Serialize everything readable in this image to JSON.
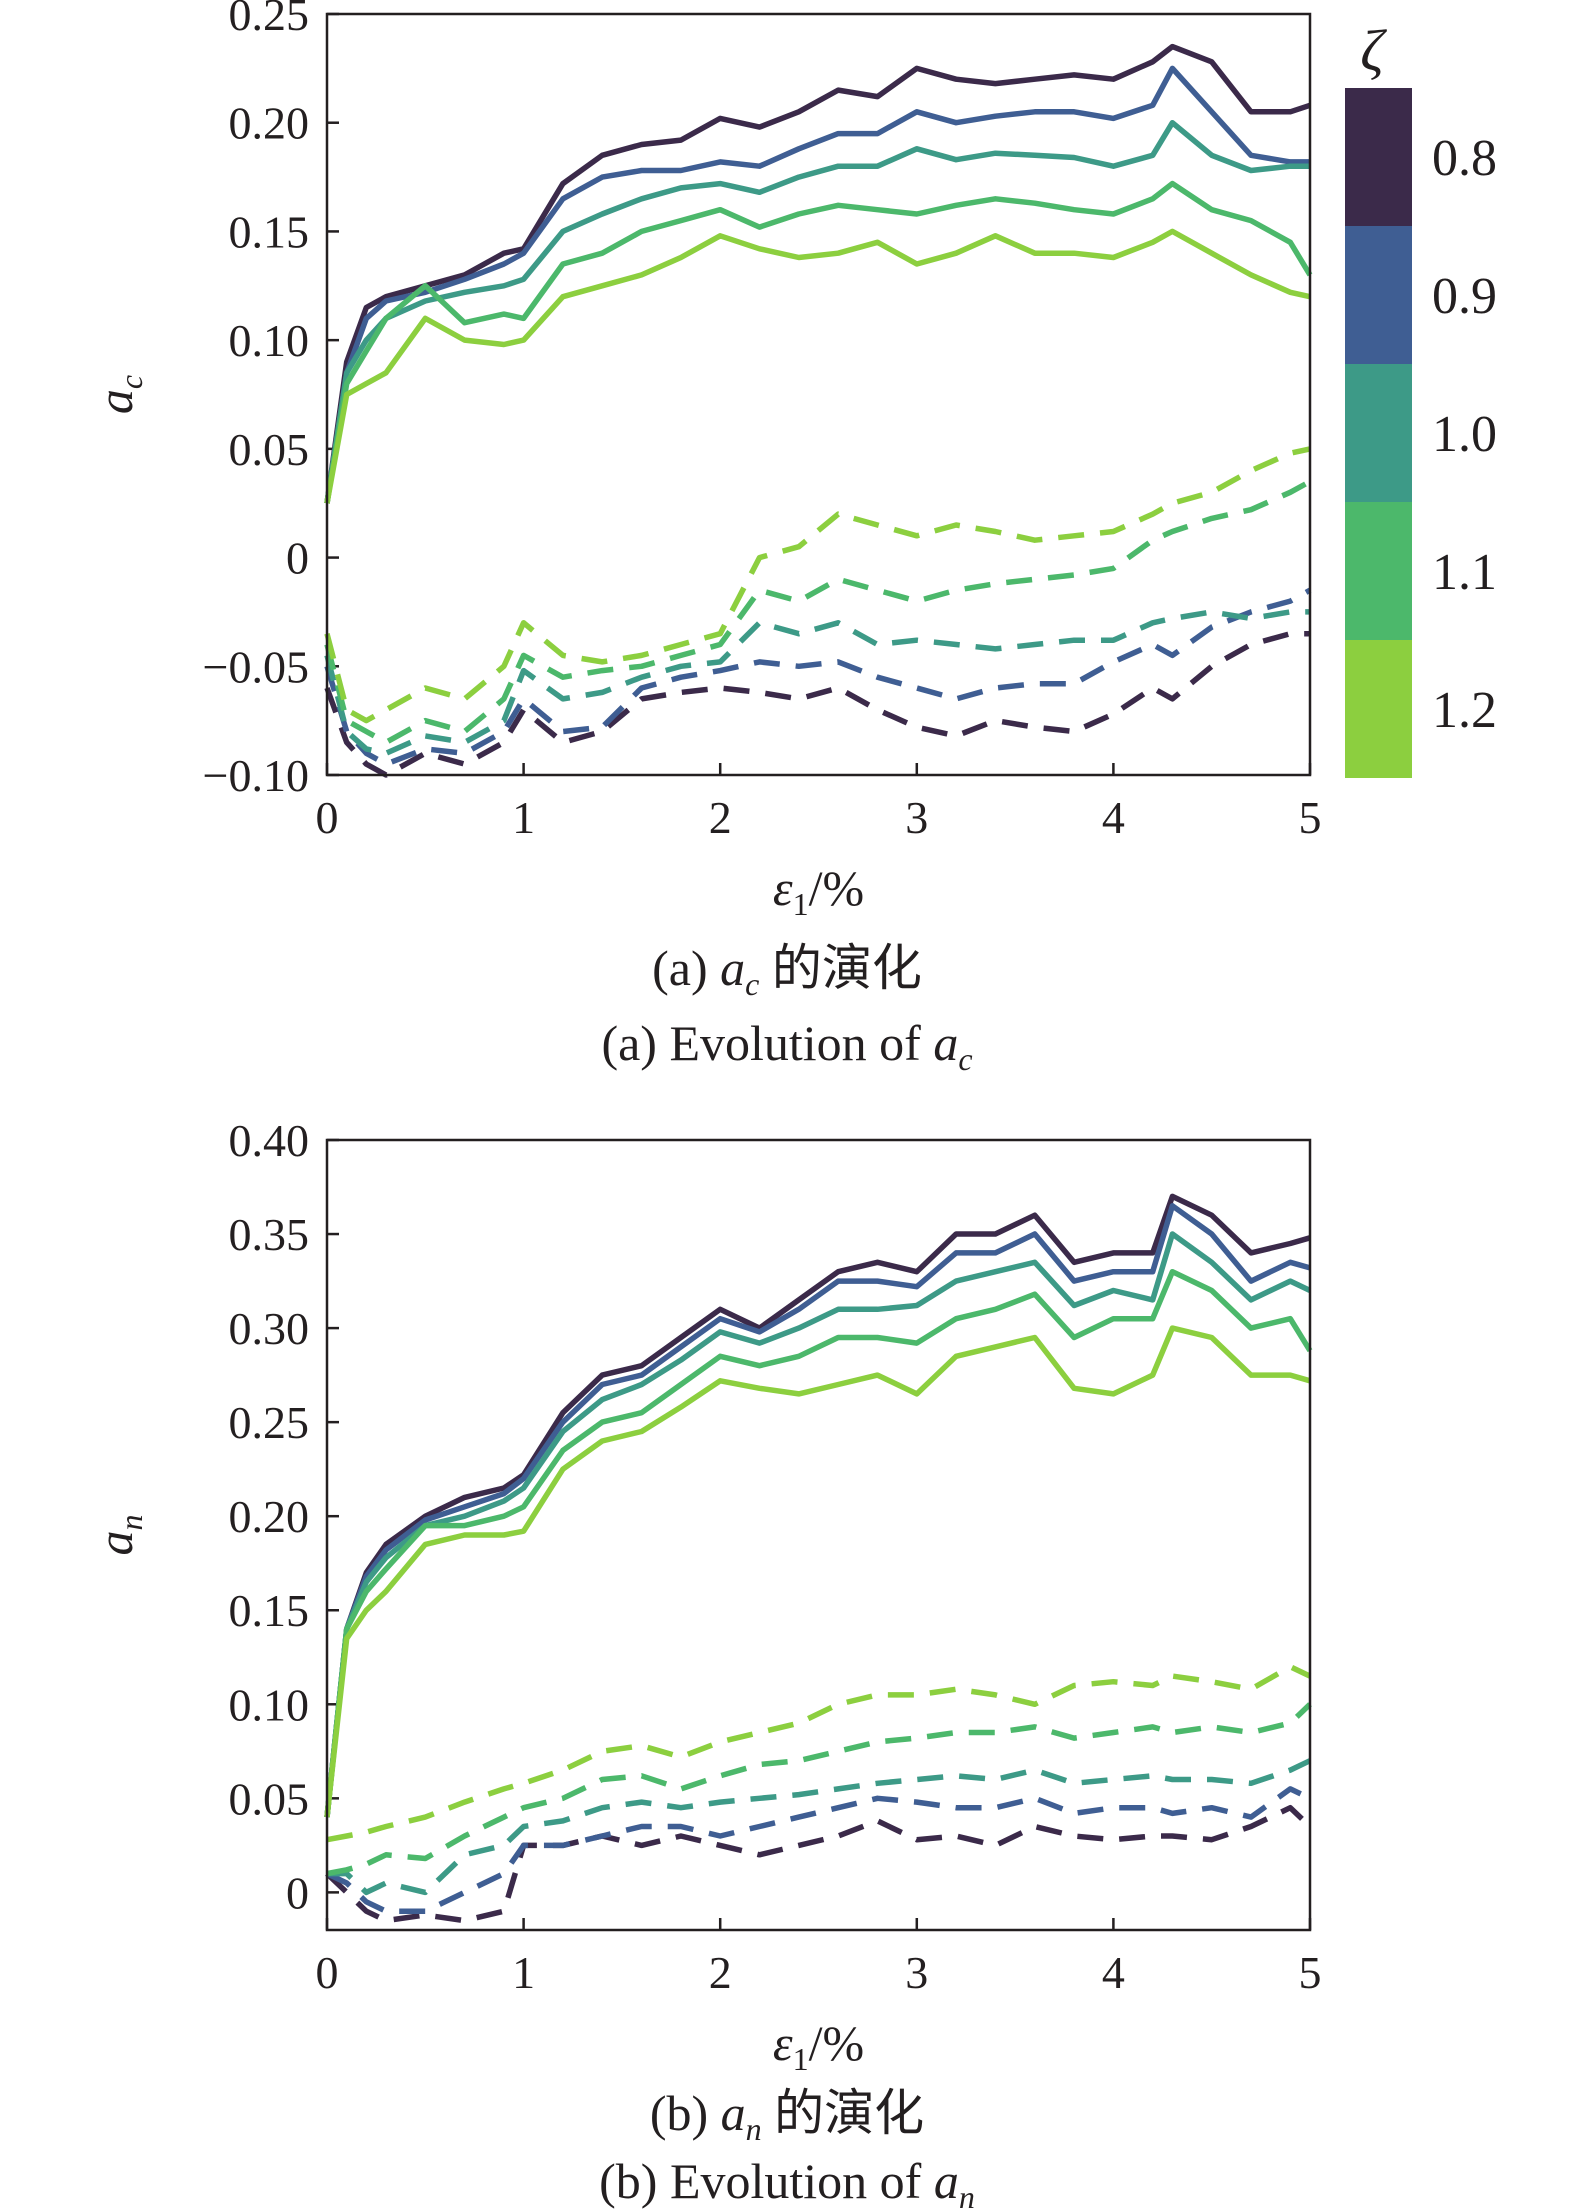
{
  "colorbar": {
    "title": "ζ",
    "levels": [
      {
        "label": "0.8",
        "color": "#3b2a4a"
      },
      {
        "label": "0.9",
        "color": "#3f5e93"
      },
      {
        "label": "1.0",
        "color": "#3d9a87"
      },
      {
        "label": "1.1",
        "color": "#4cb86b"
      },
      {
        "label": "1.2",
        "color": "#8ccf3f"
      }
    ]
  },
  "chart_data": [
    {
      "type": "line",
      "panel": "a",
      "xlabel": "ε1/%",
      "ylabel": "ac",
      "xlim": [
        0,
        5
      ],
      "ylim": [
        -0.1,
        0.25
      ],
      "xticks": [
        "0",
        "1",
        "2",
        "3",
        "4",
        "5"
      ],
      "yticks": [
        "−0.10",
        "−0.05",
        "0",
        "0.05",
        "0.10",
        "0.15",
        "0.20",
        "0.25"
      ],
      "caption_cn": "(a) ac 的演化",
      "caption_en": "(a) Evolution of ac",
      "x": [
        0,
        0.1,
        0.2,
        0.3,
        0.5,
        0.7,
        0.9,
        1.0,
        1.2,
        1.4,
        1.6,
        1.8,
        2.0,
        2.2,
        2.4,
        2.6,
        2.8,
        3.0,
        3.2,
        3.4,
        3.6,
        3.8,
        4.0,
        4.2,
        4.3,
        4.5,
        4.7,
        4.9,
        5.0
      ],
      "series": [
        {
          "zeta": "0.8",
          "style": "solid",
          "values": [
            0.025,
            0.09,
            0.115,
            0.12,
            0.125,
            0.13,
            0.14,
            0.142,
            0.172,
            0.185,
            0.19,
            0.192,
            0.202,
            0.198,
            0.205,
            0.215,
            0.212,
            0.225,
            0.22,
            0.218,
            0.22,
            0.222,
            0.22,
            0.228,
            0.235,
            0.228,
            0.205,
            0.205,
            0.208
          ]
        },
        {
          "zeta": "0.9",
          "style": "solid",
          "values": [
            0.025,
            0.085,
            0.11,
            0.118,
            0.122,
            0.128,
            0.135,
            0.14,
            0.165,
            0.175,
            0.178,
            0.178,
            0.182,
            0.18,
            0.188,
            0.195,
            0.195,
            0.205,
            0.2,
            0.203,
            0.205,
            0.205,
            0.202,
            0.208,
            0.225,
            0.205,
            0.185,
            0.182,
            0.182
          ]
        },
        {
          "zeta": "1.0",
          "style": "solid",
          "values": [
            0.025,
            0.085,
            0.1,
            0.11,
            0.118,
            0.122,
            0.125,
            0.128,
            0.15,
            0.158,
            0.165,
            0.17,
            0.172,
            0.168,
            0.175,
            0.18,
            0.18,
            0.188,
            0.183,
            0.186,
            0.185,
            0.184,
            0.18,
            0.185,
            0.2,
            0.185,
            0.178,
            0.18,
            0.18
          ]
        },
        {
          "zeta": "1.1",
          "style": "solid",
          "values": [
            0.025,
            0.08,
            0.095,
            0.11,
            0.125,
            0.108,
            0.112,
            0.11,
            0.135,
            0.14,
            0.15,
            0.155,
            0.16,
            0.152,
            0.158,
            0.162,
            0.16,
            0.158,
            0.162,
            0.165,
            0.163,
            0.16,
            0.158,
            0.165,
            0.172,
            0.16,
            0.155,
            0.145,
            0.13
          ]
        },
        {
          "zeta": "1.2",
          "style": "solid",
          "values": [
            0.025,
            0.075,
            0.08,
            0.085,
            0.11,
            0.1,
            0.098,
            0.1,
            0.12,
            0.125,
            0.13,
            0.138,
            0.148,
            0.142,
            0.138,
            0.14,
            0.145,
            0.135,
            0.14,
            0.148,
            0.14,
            0.14,
            0.138,
            0.145,
            0.15,
            0.14,
            0.13,
            0.122,
            0.12
          ]
        },
        {
          "zeta": "0.8",
          "style": "dashed",
          "values": [
            -0.06,
            -0.085,
            -0.095,
            -0.1,
            -0.09,
            -0.095,
            -0.085,
            -0.07,
            -0.085,
            -0.08,
            -0.065,
            -0.062,
            -0.06,
            -0.062,
            -0.065,
            -0.06,
            -0.07,
            -0.078,
            -0.082,
            -0.075,
            -0.078,
            -0.08,
            -0.072,
            -0.06,
            -0.065,
            -0.05,
            -0.04,
            -0.035,
            -0.035
          ]
        },
        {
          "zeta": "0.9",
          "style": "dashed",
          "values": [
            -0.05,
            -0.08,
            -0.09,
            -0.095,
            -0.088,
            -0.09,
            -0.08,
            -0.065,
            -0.08,
            -0.078,
            -0.06,
            -0.055,
            -0.052,
            -0.048,
            -0.05,
            -0.048,
            -0.055,
            -0.06,
            -0.065,
            -0.06,
            -0.058,
            -0.058,
            -0.048,
            -0.04,
            -0.045,
            -0.032,
            -0.025,
            -0.02,
            -0.015
          ]
        },
        {
          "zeta": "1.0",
          "style": "dashed",
          "values": [
            -0.045,
            -0.08,
            -0.088,
            -0.09,
            -0.082,
            -0.085,
            -0.075,
            -0.052,
            -0.065,
            -0.062,
            -0.055,
            -0.05,
            -0.048,
            -0.03,
            -0.035,
            -0.03,
            -0.04,
            -0.038,
            -0.04,
            -0.042,
            -0.04,
            -0.038,
            -0.038,
            -0.03,
            -0.028,
            -0.025,
            -0.028,
            -0.025,
            -0.025
          ]
        },
        {
          "zeta": "1.1",
          "style": "dashed",
          "values": [
            -0.04,
            -0.075,
            -0.08,
            -0.085,
            -0.075,
            -0.08,
            -0.065,
            -0.045,
            -0.055,
            -0.052,
            -0.05,
            -0.045,
            -0.04,
            -0.015,
            -0.02,
            -0.01,
            -0.015,
            -0.02,
            -0.015,
            -0.012,
            -0.01,
            -0.008,
            -0.005,
            0.008,
            0.012,
            0.018,
            0.022,
            0.03,
            0.035
          ]
        },
        {
          "zeta": "1.2",
          "style": "dashed",
          "values": [
            -0.035,
            -0.07,
            -0.075,
            -0.07,
            -0.06,
            -0.065,
            -0.05,
            -0.03,
            -0.045,
            -0.048,
            -0.045,
            -0.04,
            -0.035,
            0.0,
            0.005,
            0.02,
            0.015,
            0.01,
            0.015,
            0.012,
            0.008,
            0.01,
            0.012,
            0.02,
            0.025,
            0.03,
            0.04,
            0.048,
            0.05
          ]
        }
      ]
    },
    {
      "type": "line",
      "panel": "b",
      "xlabel": "ε1/%",
      "ylabel": "an",
      "xlim": [
        0,
        5
      ],
      "ylim": [
        -0.02,
        0.4
      ],
      "xticks": [
        "0",
        "1",
        "2",
        "3",
        "4",
        "5"
      ],
      "yticks": [
        "0",
        "0.05",
        "0.10",
        "0.15",
        "0.20",
        "0.25",
        "0.30",
        "0.35",
        "0.40"
      ],
      "caption_cn": "(b) an 的演化",
      "caption_en": "(b) Evolution of an",
      "x": [
        0,
        0.1,
        0.2,
        0.3,
        0.5,
        0.7,
        0.9,
        1.0,
        1.2,
        1.4,
        1.6,
        1.8,
        2.0,
        2.2,
        2.4,
        2.6,
        2.8,
        3.0,
        3.2,
        3.4,
        3.6,
        3.8,
        4.0,
        4.2,
        4.3,
        4.5,
        4.7,
        4.9,
        5.0
      ],
      "series": [
        {
          "zeta": "0.8",
          "style": "solid",
          "values": [
            0.04,
            0.14,
            0.17,
            0.185,
            0.2,
            0.21,
            0.215,
            0.222,
            0.255,
            0.275,
            0.28,
            0.295,
            0.31,
            0.3,
            0.315,
            0.33,
            0.335,
            0.33,
            0.35,
            0.35,
            0.36,
            0.335,
            0.34,
            0.34,
            0.37,
            0.36,
            0.34,
            0.345,
            0.348
          ]
        },
        {
          "zeta": "0.9",
          "style": "solid",
          "values": [
            0.04,
            0.14,
            0.168,
            0.182,
            0.198,
            0.205,
            0.212,
            0.22,
            0.25,
            0.27,
            0.275,
            0.29,
            0.305,
            0.298,
            0.31,
            0.325,
            0.325,
            0.322,
            0.34,
            0.34,
            0.35,
            0.325,
            0.33,
            0.33,
            0.365,
            0.35,
            0.325,
            0.335,
            0.332
          ]
        },
        {
          "zeta": "1.0",
          "style": "solid",
          "values": [
            0.04,
            0.14,
            0.165,
            0.178,
            0.195,
            0.2,
            0.208,
            0.215,
            0.245,
            0.262,
            0.27,
            0.283,
            0.298,
            0.292,
            0.3,
            0.31,
            0.31,
            0.312,
            0.325,
            0.33,
            0.335,
            0.312,
            0.32,
            0.315,
            0.35,
            0.335,
            0.315,
            0.325,
            0.32
          ]
        },
        {
          "zeta": "1.1",
          "style": "solid",
          "values": [
            0.04,
            0.14,
            0.16,
            0.172,
            0.195,
            0.195,
            0.2,
            0.205,
            0.235,
            0.25,
            0.255,
            0.27,
            0.285,
            0.28,
            0.285,
            0.295,
            0.295,
            0.292,
            0.305,
            0.31,
            0.318,
            0.295,
            0.305,
            0.305,
            0.33,
            0.32,
            0.3,
            0.305,
            0.288
          ]
        },
        {
          "zeta": "1.2",
          "style": "solid",
          "values": [
            0.04,
            0.135,
            0.15,
            0.16,
            0.185,
            0.19,
            0.19,
            0.192,
            0.225,
            0.24,
            0.245,
            0.258,
            0.272,
            0.268,
            0.265,
            0.27,
            0.275,
            0.265,
            0.285,
            0.29,
            0.295,
            0.268,
            0.265,
            0.275,
            0.3,
            0.295,
            0.275,
            0.275,
            0.272
          ]
        },
        {
          "zeta": "0.8",
          "style": "dashed",
          "values": [
            0.01,
            0.0,
            -0.01,
            -0.015,
            -0.012,
            -0.015,
            -0.01,
            0.025,
            0.025,
            0.03,
            0.025,
            0.03,
            0.025,
            0.02,
            0.025,
            0.03,
            0.038,
            0.028,
            0.03,
            0.025,
            0.035,
            0.03,
            0.028,
            0.03,
            0.03,
            0.028,
            0.035,
            0.045,
            0.035
          ]
        },
        {
          "zeta": "0.9",
          "style": "dashed",
          "values": [
            0.01,
            0.005,
            -0.005,
            -0.01,
            -0.01,
            0.0,
            0.01,
            0.025,
            0.025,
            0.03,
            0.035,
            0.035,
            0.03,
            0.035,
            0.04,
            0.045,
            0.05,
            0.048,
            0.045,
            0.045,
            0.05,
            0.042,
            0.045,
            0.045,
            0.042,
            0.045,
            0.04,
            0.055,
            0.05
          ]
        },
        {
          "zeta": "1.0",
          "style": "dashed",
          "values": [
            0.01,
            0.01,
            0.0,
            0.005,
            0.0,
            0.02,
            0.025,
            0.035,
            0.038,
            0.045,
            0.048,
            0.045,
            0.048,
            0.05,
            0.052,
            0.055,
            0.058,
            0.06,
            0.062,
            0.06,
            0.065,
            0.058,
            0.06,
            0.062,
            0.06,
            0.06,
            0.058,
            0.065,
            0.07
          ]
        },
        {
          "zeta": "1.1",
          "style": "dashed",
          "values": [
            0.01,
            0.012,
            0.015,
            0.02,
            0.018,
            0.03,
            0.04,
            0.045,
            0.05,
            0.06,
            0.062,
            0.055,
            0.062,
            0.068,
            0.07,
            0.075,
            0.08,
            0.082,
            0.085,
            0.085,
            0.088,
            0.082,
            0.085,
            0.088,
            0.085,
            0.088,
            0.085,
            0.09,
            0.1
          ]
        },
        {
          "zeta": "1.2",
          "style": "dashed",
          "values": [
            0.028,
            0.03,
            0.032,
            0.035,
            0.04,
            0.048,
            0.055,
            0.058,
            0.065,
            0.075,
            0.078,
            0.072,
            0.08,
            0.085,
            0.09,
            0.1,
            0.105,
            0.105,
            0.108,
            0.105,
            0.1,
            0.11,
            0.112,
            0.11,
            0.115,
            0.112,
            0.108,
            0.12,
            0.115
          ]
        }
      ]
    }
  ]
}
